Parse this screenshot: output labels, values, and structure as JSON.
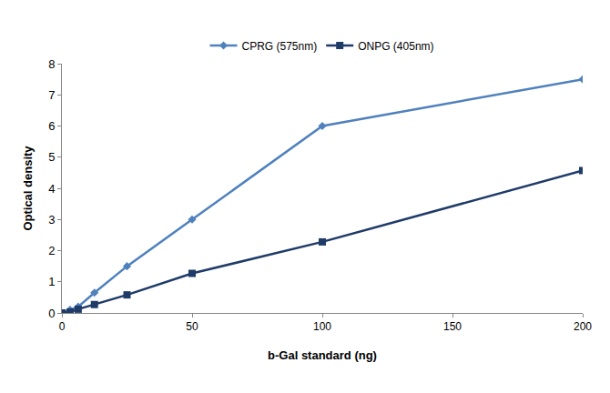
{
  "chart_data": {
    "type": "line",
    "x_label": "b-Gal standard (ng)",
    "y_label": "Optical density",
    "x": [
      0,
      3.125,
      6.25,
      12.5,
      25,
      50,
      100,
      200
    ],
    "series": [
      {
        "name": "CPRG (575nm)",
        "color": "#4f81bd",
        "marker": "diamond",
        "line_style": "solid",
        "values": [
          0,
          0.1,
          0.2,
          0.65,
          1.5,
          3.0,
          6.0,
          7.5
        ]
      },
      {
        "name": "ONPG (405nm)",
        "color": "#1f3b68",
        "marker": "square",
        "line_style": "solid",
        "values": [
          0,
          0.03,
          0.12,
          0.27,
          0.58,
          1.27,
          2.28,
          4.57
        ]
      }
    ],
    "xlim": [
      0,
      200
    ],
    "xticks": [
      0,
      50,
      100,
      150,
      200
    ],
    "ylim": [
      0,
      8
    ],
    "yticks": [
      0,
      1,
      2,
      3,
      4,
      5,
      6,
      7,
      8
    ],
    "grid": false,
    "legend": "top"
  }
}
